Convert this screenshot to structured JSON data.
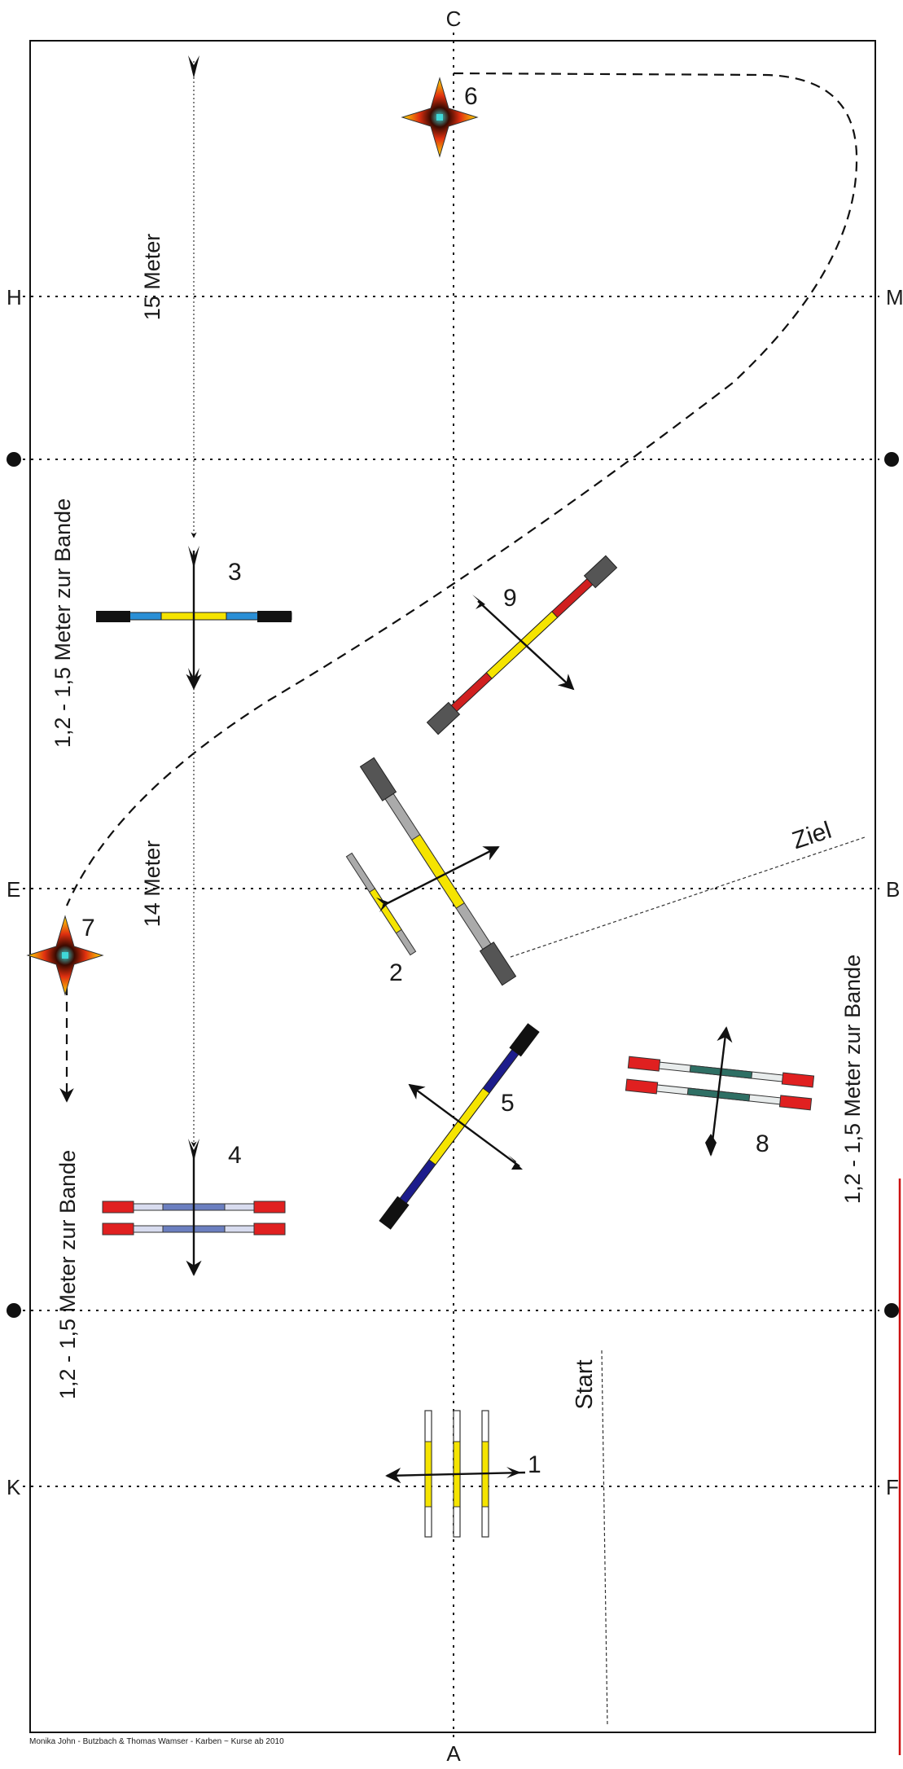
{
  "arena": {
    "letters": {
      "top": "C",
      "bottom": "A",
      "h": "H",
      "m": "M",
      "e": "E",
      "b": "B",
      "k": "K",
      "f": "F"
    },
    "distance_labels": {
      "top_arrow": "15 Meter",
      "middle_arrow": "14 Meter",
      "left_upper": "1,2 - 1,5 Meter zur Bande",
      "left_lower": "1,2 - 1,5 Meter zur Bande",
      "right": "1,2 - 1,5 Meter zur Bande"
    },
    "start_label": "Start",
    "finish_label": "Ziel",
    "credit": "Monika John - Butzbach & Thomas Wamser - Karben ~ Kurse ab 2010"
  },
  "obstacles": [
    {
      "number": "1"
    },
    {
      "number": "2"
    },
    {
      "number": "3"
    },
    {
      "number": "4"
    },
    {
      "number": "5"
    },
    {
      "number": "6"
    },
    {
      "number": "7"
    },
    {
      "number": "8"
    },
    {
      "number": "9"
    }
  ],
  "colors": {
    "pole_yellow": "#f5e400",
    "block_red": "#e02020",
    "block_black": "#111111",
    "block_grey": "#555555",
    "pole_blue": "#2a8fd6",
    "pole_navy": "#1c1c8c",
    "pole_teal": "#2e6f64",
    "boundary_red": "#cc1111"
  }
}
